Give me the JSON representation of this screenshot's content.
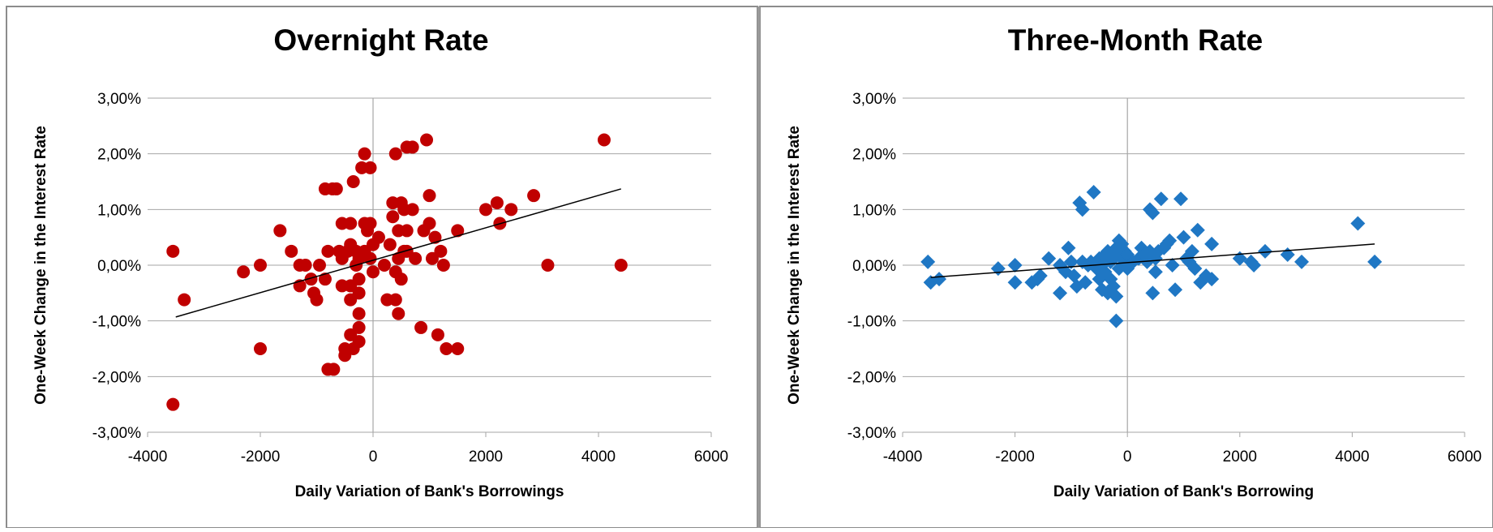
{
  "chart_data": [
    {
      "type": "scatter",
      "title": "Overnight Rate",
      "xlabel": "Daily Variation of Bank's Borrowings",
      "ylabel": "One-Week Change in the Interest Rate",
      "xlim": [
        -4000,
        6000
      ],
      "ylim": [
        -3,
        3
      ],
      "x_ticks": [
        -4000,
        -2000,
        0,
        2000,
        4000,
        6000
      ],
      "x_tick_labels": [
        "-4000",
        "-2000",
        "0",
        "2000",
        "4000",
        "6000"
      ],
      "y_ticks": [
        3,
        2,
        1,
        0,
        -1,
        -2,
        -3
      ],
      "y_tick_labels": [
        "3,00%",
        "2,00%",
        "1,00%",
        "0,00%",
        "-1,00%",
        "-2,00%",
        "-3,00%"
      ],
      "grid": "horizontal",
      "marker": "circle",
      "color": "#c00000",
      "trendline": {
        "x": [
          -3500,
          4400
        ],
        "y": [
          -0.93,
          1.37
        ]
      },
      "points": [
        [
          -3550,
          0.25
        ],
        [
          -3550,
          -2.5
        ],
        [
          -3350,
          -0.62
        ],
        [
          -2300,
          -0.12
        ],
        [
          -2000,
          0.0
        ],
        [
          -2000,
          -1.5
        ],
        [
          -1650,
          0.62
        ],
        [
          -1450,
          0.25
        ],
        [
          -1300,
          0.0
        ],
        [
          -1300,
          -0.37
        ],
        [
          -1200,
          0.0
        ],
        [
          -1100,
          -0.25
        ],
        [
          -1050,
          -0.5
        ],
        [
          -1000,
          -0.62
        ],
        [
          -950,
          0.0
        ],
        [
          -850,
          -0.25
        ],
        [
          -850,
          1.37
        ],
        [
          -800,
          0.25
        ],
        [
          -800,
          -1.87
        ],
        [
          -720,
          1.37
        ],
        [
          -700,
          -1.87
        ],
        [
          -650,
          1.37
        ],
        [
          -600,
          0.25
        ],
        [
          -550,
          0.75
        ],
        [
          -550,
          0.12
        ],
        [
          -550,
          -0.37
        ],
        [
          -500,
          -1.5
        ],
        [
          -500,
          -1.62
        ],
        [
          -450,
          0.25
        ],
        [
          -400,
          0.75
        ],
        [
          -400,
          0.37
        ],
        [
          -400,
          -0.37
        ],
        [
          -400,
          -0.62
        ],
        [
          -400,
          -1.25
        ],
        [
          -350,
          1.5
        ],
        [
          -350,
          -1.5
        ],
        [
          -300,
          0.0
        ],
        [
          -300,
          0.25
        ],
        [
          -250,
          0.12
        ],
        [
          -250,
          -0.25
        ],
        [
          -250,
          -0.5
        ],
        [
          -250,
          -0.87
        ],
        [
          -250,
          -1.12
        ],
        [
          -250,
          -1.37
        ],
        [
          -200,
          1.75
        ],
        [
          -150,
          2.0
        ],
        [
          -150,
          0.75
        ],
        [
          -150,
          0.25
        ],
        [
          -100,
          0.62
        ],
        [
          -50,
          1.75
        ],
        [
          -50,
          0.75
        ],
        [
          -50,
          0.12
        ],
        [
          0,
          0.37
        ],
        [
          0,
          -0.12
        ],
        [
          100,
          0.5
        ],
        [
          200,
          0.0
        ],
        [
          250,
          -0.62
        ],
        [
          300,
          0.37
        ],
        [
          350,
          0.87
        ],
        [
          350,
          1.12
        ],
        [
          400,
          2.0
        ],
        [
          400,
          -0.12
        ],
        [
          400,
          -0.62
        ],
        [
          450,
          0.62
        ],
        [
          450,
          -0.87
        ],
        [
          450,
          0.12
        ],
        [
          500,
          1.12
        ],
        [
          500,
          -0.25
        ],
        [
          550,
          0.25
        ],
        [
          550,
          1.0
        ],
        [
          600,
          2.12
        ],
        [
          600,
          0.62
        ],
        [
          600,
          0.25
        ],
        [
          700,
          1.0
        ],
        [
          700,
          2.12
        ],
        [
          750,
          0.12
        ],
        [
          850,
          -1.12
        ],
        [
          900,
          0.62
        ],
        [
          950,
          2.25
        ],
        [
          1000,
          0.75
        ],
        [
          1000,
          1.25
        ],
        [
          1050,
          0.12
        ],
        [
          1100,
          0.5
        ],
        [
          1150,
          -1.25
        ],
        [
          1200,
          0.25
        ],
        [
          1250,
          0.0
        ],
        [
          1300,
          -1.5
        ],
        [
          1500,
          0.62
        ],
        [
          1500,
          -1.5
        ],
        [
          2000,
          1.0
        ],
        [
          2200,
          1.12
        ],
        [
          2250,
          0.75
        ],
        [
          2450,
          1.0
        ],
        [
          2850,
          1.25
        ],
        [
          3100,
          0.0
        ],
        [
          4100,
          2.25
        ],
        [
          4400,
          0.0
        ]
      ]
    },
    {
      "type": "scatter",
      "title": "Three-Month Rate",
      "xlabel": "Daily Variation of Bank's Borrowing",
      "ylabel": "One-Week Change in the Interest Rate",
      "xlim": [
        -4000,
        6000
      ],
      "ylim": [
        -3,
        3
      ],
      "x_ticks": [
        -4000,
        -2000,
        0,
        2000,
        4000,
        6000
      ],
      "x_tick_labels": [
        "-4000",
        "-2000",
        "0",
        "2000",
        "4000",
        "6000"
      ],
      "y_ticks": [
        3,
        2,
        1,
        0,
        -1,
        -2,
        -3
      ],
      "y_tick_labels": [
        "3,00%",
        "2,00%",
        "1,00%",
        "0,00%",
        "-1,00%",
        "-2,00%",
        "-3,00%"
      ],
      "grid": "horizontal",
      "marker": "diamond",
      "color": "#1f77c4",
      "trendline": {
        "x": [
          -3500,
          4400
        ],
        "y": [
          -0.22,
          0.38
        ]
      },
      "points": [
        [
          -3550,
          0.06
        ],
        [
          -3500,
          -0.31
        ],
        [
          -3350,
          -0.25
        ],
        [
          -2300,
          -0.06
        ],
        [
          -2000,
          -0.31
        ],
        [
          -2000,
          0.0
        ],
        [
          -1700,
          -0.31
        ],
        [
          -1600,
          -0.25
        ],
        [
          -1550,
          -0.19
        ],
        [
          -1400,
          0.12
        ],
        [
          -1200,
          -0.5
        ],
        [
          -1200,
          0.0
        ],
        [
          -1100,
          -0.12
        ],
        [
          -1050,
          0.31
        ],
        [
          -1000,
          0.06
        ],
        [
          -950,
          -0.19
        ],
        [
          -900,
          -0.38
        ],
        [
          -850,
          1.12
        ],
        [
          -800,
          0.06
        ],
        [
          -800,
          1.0
        ],
        [
          -750,
          -0.31
        ],
        [
          -700,
          0.0
        ],
        [
          -650,
          0.06
        ],
        [
          -600,
          1.31
        ],
        [
          -550,
          -0.06
        ],
        [
          -500,
          0.12
        ],
        [
          -500,
          -0.25
        ],
        [
          -450,
          -0.44
        ],
        [
          -450,
          0.0
        ],
        [
          -400,
          0.19
        ],
        [
          -400,
          -0.12
        ],
        [
          -350,
          0.25
        ],
        [
          -350,
          -0.5
        ],
        [
          -300,
          0.06
        ],
        [
          -300,
          -0.25
        ],
        [
          -250,
          0.12
        ],
        [
          -250,
          -0.38
        ],
        [
          -200,
          0.31
        ],
        [
          -200,
          -0.56
        ],
        [
          -200,
          -1.0
        ],
        [
          -150,
          0.19
        ],
        [
          -150,
          0.44
        ],
        [
          -150,
          -0.06
        ],
        [
          -100,
          0.38
        ],
        [
          -100,
          0.12
        ],
        [
          -50,
          0.25
        ],
        [
          -50,
          0.0
        ],
        [
          0,
          0.19
        ],
        [
          0,
          -0.06
        ],
        [
          100,
          0.06
        ],
        [
          200,
          0.12
        ],
        [
          250,
          0.31
        ],
        [
          300,
          0.19
        ],
        [
          350,
          0.06
        ],
        [
          400,
          1.0
        ],
        [
          400,
          0.25
        ],
        [
          450,
          -0.5
        ],
        [
          450,
          0.94
        ],
        [
          500,
          0.12
        ],
        [
          500,
          -0.12
        ],
        [
          550,
          0.25
        ],
        [
          600,
          1.19
        ],
        [
          650,
          0.31
        ],
        [
          700,
          0.38
        ],
        [
          750,
          0.44
        ],
        [
          800,
          0.0
        ],
        [
          850,
          -0.44
        ],
        [
          950,
          1.19
        ],
        [
          1000,
          0.5
        ],
        [
          1050,
          0.12
        ],
        [
          1100,
          0.06
        ],
        [
          1150,
          0.25
        ],
        [
          1200,
          -0.06
        ],
        [
          1250,
          0.63
        ],
        [
          1300,
          -0.31
        ],
        [
          1400,
          -0.19
        ],
        [
          1500,
          0.38
        ],
        [
          1500,
          -0.25
        ],
        [
          2000,
          0.12
        ],
        [
          2200,
          0.06
        ],
        [
          2250,
          0.0
        ],
        [
          2450,
          0.25
        ],
        [
          2850,
          0.19
        ],
        [
          3100,
          0.06
        ],
        [
          4100,
          0.75
        ],
        [
          4400,
          0.06
        ]
      ]
    }
  ]
}
